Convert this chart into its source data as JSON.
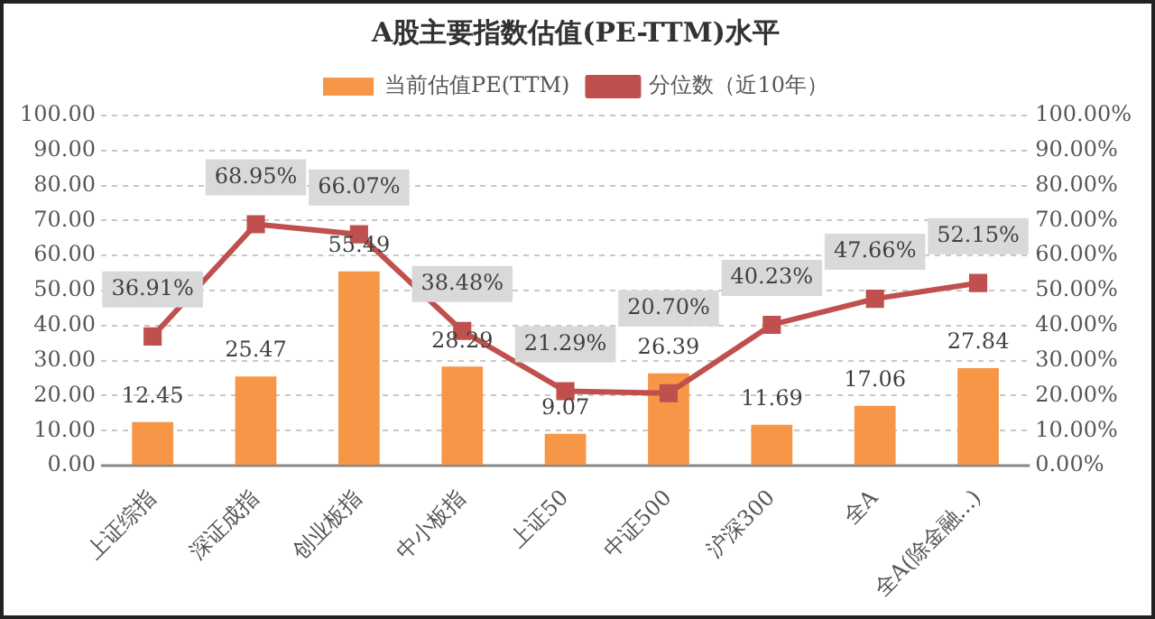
{
  "chart_data": {
    "type": "bar",
    "title": "A股主要指数估值(PE-TTM)水平",
    "categories": [
      "上证综指",
      "深证成指",
      "创业板指",
      "中小板指",
      "上证50",
      "中证500",
      "沪深300",
      "全A",
      "全A(除金融...)"
    ],
    "series": [
      {
        "name": "当前估值PE(TTM)",
        "color": "#f79646",
        "values": [
          12.45,
          25.47,
          55.49,
          28.29,
          9.07,
          26.39,
          11.69,
          17.06,
          27.84
        ],
        "value_labels": [
          "12.45",
          "25.47",
          "55.49",
          "28.29",
          "9.07",
          "26.39",
          "11.69",
          "17.06",
          "27.84"
        ]
      },
      {
        "name": "分位数（近10年）",
        "type": "line",
        "axis": "y2",
        "color": "#c0504d",
        "marker": "square",
        "values": [
          36.91,
          68.95,
          66.07,
          38.48,
          21.29,
          20.7,
          40.23,
          47.66,
          52.15
        ],
        "value_labels": [
          "36.91%",
          "68.95%",
          "66.07%",
          "38.48%",
          "21.29%",
          "20.70%",
          "40.23%",
          "47.66%",
          "52.15%"
        ]
      }
    ],
    "ylim": [
      0,
      100
    ],
    "yticks": [
      {
        "value": 0,
        "label": "0.00"
      },
      {
        "value": 10,
        "label": "10.00"
      },
      {
        "value": 20,
        "label": "20.00"
      },
      {
        "value": 30,
        "label": "30.00"
      },
      {
        "value": 40,
        "label": "40.00"
      },
      {
        "value": 50,
        "label": "50.00"
      },
      {
        "value": 60,
        "label": "60.00"
      },
      {
        "value": 70,
        "label": "70.00"
      },
      {
        "value": 80,
        "label": "80.00"
      },
      {
        "value": 90,
        "label": "90.00"
      },
      {
        "value": 100,
        "label": "100.00"
      }
    ],
    "y2lim": [
      0,
      100
    ],
    "y2ticks": [
      {
        "value": 0,
        "label": "0.00%"
      },
      {
        "value": 10,
        "label": "10.00%"
      },
      {
        "value": 20,
        "label": "20.00%"
      },
      {
        "value": 30,
        "label": "30.00%"
      },
      {
        "value": 40,
        "label": "40.00%"
      },
      {
        "value": 50,
        "label": "50.00%"
      },
      {
        "value": 60,
        "label": "60.00%"
      },
      {
        "value": 70,
        "label": "70.00%"
      },
      {
        "value": 80,
        "label": "80.00%"
      },
      {
        "value": 90,
        "label": "90.00%"
      },
      {
        "value": 100,
        "label": "100.00%"
      }
    ],
    "grid": "y",
    "legend": "top"
  }
}
